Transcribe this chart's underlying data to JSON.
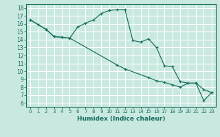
{
  "xlabel": "Humidex (Indice chaleur)",
  "bg_color": "#c8e8e0",
  "grid_color": "#ffffff",
  "line_color": "#1a7060",
  "xlim": [
    -0.5,
    23.5
  ],
  "ylim": [
    5.5,
    18.5
  ],
  "xticks": [
    0,
    1,
    2,
    3,
    4,
    5,
    6,
    7,
    8,
    9,
    10,
    11,
    12,
    13,
    14,
    15,
    16,
    17,
    18,
    19,
    20,
    21,
    22,
    23
  ],
  "yticks": [
    6,
    7,
    8,
    9,
    10,
    11,
    12,
    13,
    14,
    15,
    16,
    17,
    18
  ],
  "line1_x": [
    0,
    1,
    2,
    3,
    4,
    5,
    6,
    7,
    8,
    9,
    10,
    11,
    12,
    13,
    14,
    15,
    16,
    17,
    18,
    19,
    20,
    21,
    22,
    23
  ],
  "line1_y": [
    16.5,
    15.9,
    15.3,
    14.4,
    14.3,
    14.2,
    15.6,
    16.1,
    16.5,
    17.3,
    17.7,
    17.8,
    17.8,
    13.9,
    13.7,
    14.1,
    13.0,
    10.7,
    10.6,
    8.7,
    8.5,
    8.5,
    6.3,
    7.3
  ],
  "line2_x": [
    0,
    2,
    3,
    4,
    5,
    11,
    12,
    15,
    16,
    17,
    18,
    19,
    20,
    21,
    22,
    23
  ],
  "line2_y": [
    16.5,
    15.3,
    14.4,
    14.3,
    14.2,
    10.8,
    10.3,
    9.2,
    8.8,
    8.6,
    8.3,
    8.0,
    8.5,
    8.5,
    7.7,
    7.3
  ]
}
